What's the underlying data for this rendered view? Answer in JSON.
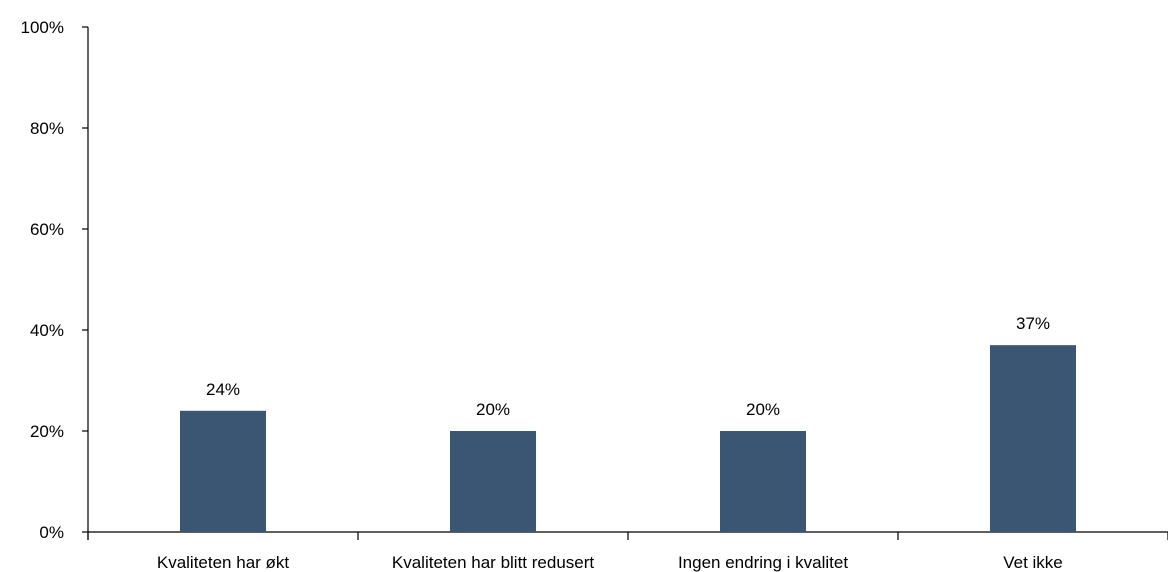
{
  "chart_data": {
    "type": "bar",
    "title": "",
    "xlabel": "",
    "ylabel": "",
    "categories": [
      "Kvaliteten har økt",
      "Kvaliteten har blitt redusert",
      "Ingen endring i kvalitet",
      "Vet ikke"
    ],
    "values": [
      24,
      20,
      20,
      37
    ],
    "data_labels": [
      "24%",
      "20%",
      "20%",
      "37%"
    ],
    "ylim": [
      0,
      100
    ],
    "yticks": [
      0,
      20,
      40,
      60,
      80,
      100
    ],
    "ytick_labels": [
      "0%",
      "20%",
      "40%",
      "60%",
      "80%",
      "100%"
    ],
    "bar_color": "#3b5673",
    "grid": false,
    "legend": "none"
  }
}
